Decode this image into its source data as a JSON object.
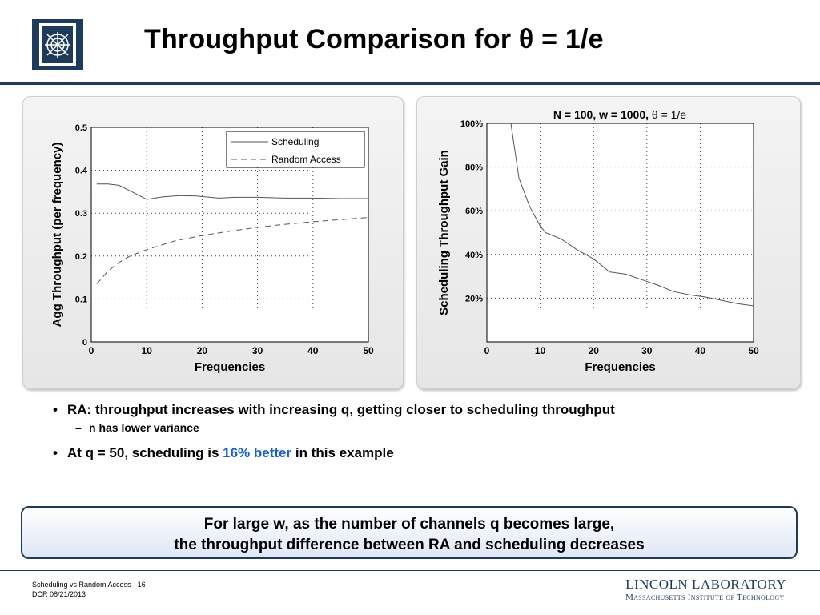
{
  "slide": {
    "title": "Throughput Comparison for θ = 1/e"
  },
  "bullets": {
    "b1": "RA: throughput increases with increasing q, getting closer to scheduling throughput",
    "b1_sub": "n has lower variance",
    "b2_pre": "At q = 50, scheduling is ",
    "b2_highlight": "16% better",
    "b2_post": " in this example"
  },
  "callout": {
    "line1": "For large w, as the number of channels q becomes large,",
    "line2": "the throughput difference between RA and scheduling decreases"
  },
  "footer": {
    "line1": "Scheduling vs Random Access - 16",
    "line2": "DCR 08/21/2013",
    "lab_name": "LINCOLN LABORATORY",
    "lab_sub": "Massachusetts Institute of Technology"
  },
  "colors": {
    "accent": "#1f3b5c",
    "highlight": "#1a5fd0"
  },
  "chart_data": [
    {
      "type": "line",
      "title": "",
      "xlabel": "Frequencies",
      "ylabel": "Agg Throughput (per frequency)",
      "xlim": [
        0,
        50
      ],
      "ylim": [
        0,
        0.5
      ],
      "xticks": [
        0,
        10,
        20,
        30,
        40,
        50
      ],
      "yticks": [
        0,
        0.1,
        0.2,
        0.3,
        0.4,
        0.5
      ],
      "grid": true,
      "legend_position": "top-right",
      "series": [
        {
          "name": "Scheduling",
          "style": "solid",
          "x": [
            1,
            3,
            5,
            7,
            10,
            13,
            16,
            19,
            23,
            26,
            30,
            35,
            40,
            45,
            50
          ],
          "y": [
            0.368,
            0.368,
            0.365,
            0.352,
            0.332,
            0.338,
            0.341,
            0.34,
            0.335,
            0.337,
            0.337,
            0.335,
            0.335,
            0.334,
            0.334
          ]
        },
        {
          "name": "Random Access",
          "style": "dashed",
          "x": [
            1,
            3,
            5,
            7,
            10,
            15,
            20,
            25,
            30,
            35,
            40,
            45,
            50
          ],
          "y": [
            0.135,
            0.165,
            0.185,
            0.2,
            0.215,
            0.235,
            0.248,
            0.258,
            0.267,
            0.274,
            0.28,
            0.285,
            0.29
          ]
        }
      ]
    },
    {
      "type": "line",
      "title": "N = 100, w = 1000, θ = 1/e",
      "xlabel": "Frequencies",
      "ylabel": "Scheduling Throughput Gain",
      "xlim": [
        0,
        50
      ],
      "ylim": [
        0,
        100
      ],
      "xticks": [
        0,
        10,
        20,
        30,
        40,
        50
      ],
      "yticks": [
        20,
        40,
        60,
        80,
        100
      ],
      "ytick_labels": [
        "20%",
        "40%",
        "60%",
        "80%",
        "100%"
      ],
      "grid": true,
      "series": [
        {
          "x": [
            4.5,
            6,
            8,
            10,
            11,
            14,
            17,
            20,
            23,
            26,
            29,
            32,
            35,
            38,
            41,
            44,
            47,
            50
          ],
          "y": [
            100,
            75,
            62,
            53,
            50,
            47,
            42,
            38,
            32,
            31,
            28.5,
            26,
            23,
            21.5,
            20.5,
            19,
            17.5,
            16.5
          ]
        }
      ]
    }
  ]
}
